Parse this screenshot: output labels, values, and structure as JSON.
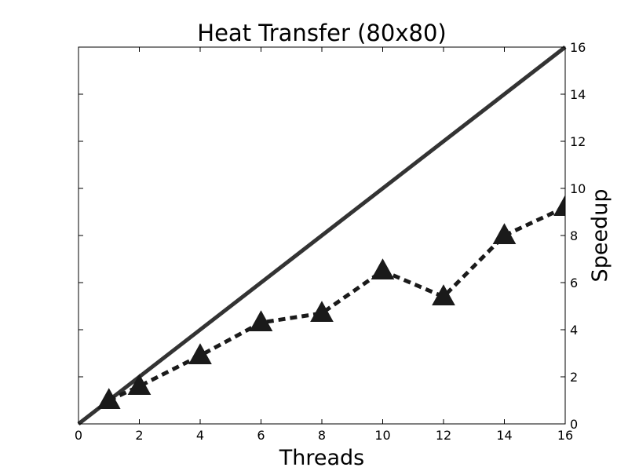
{
  "chart_data": {
    "type": "line",
    "title": "Heat Transfer (80x80)",
    "xlabel": "Threads",
    "ylabel": "Speedup",
    "xlim": [
      0,
      16
    ],
    "ylim": [
      0,
      16
    ],
    "xticks": [
      0,
      2,
      4,
      6,
      8,
      10,
      12,
      14,
      16
    ],
    "yticks": [
      0,
      2,
      4,
      6,
      8,
      10,
      12,
      14,
      16
    ],
    "y_axis_side": "right",
    "grid": false,
    "legend": "none",
    "series": [
      {
        "style": "solid",
        "color": "#333333",
        "x": [
          0,
          16
        ],
        "y": [
          0,
          16
        ]
      },
      {
        "style": "dashed",
        "marker": "triangle",
        "color": "#1a1a1a",
        "x": [
          1,
          2,
          4,
          6,
          8,
          10,
          12,
          14,
          16
        ],
        "y": [
          1.0,
          1.6,
          2.9,
          4.3,
          4.7,
          6.5,
          5.4,
          8.0,
          9.2
        ]
      }
    ]
  }
}
